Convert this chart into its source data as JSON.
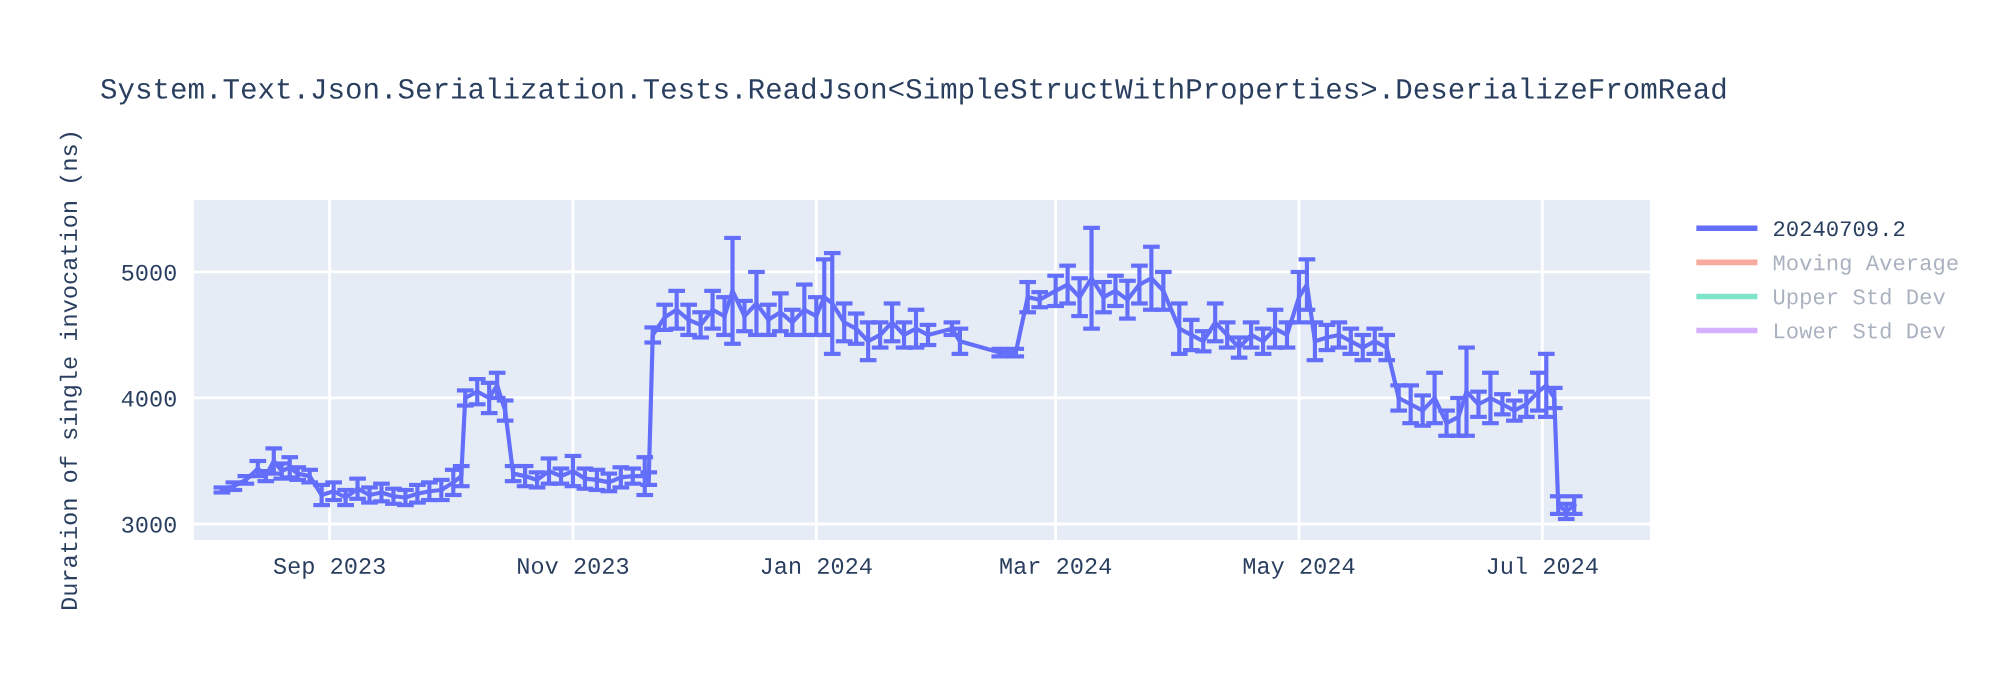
{
  "chart_data": {
    "type": "line",
    "title": "System.Text.Json.Serialization.Tests.ReadJson<SimpleStructWithProperties>.DeserializeFromRead",
    "ylabel": "Duration of single invocation (ns)",
    "xlim": [
      "2023-07-29",
      "2024-07-28"
    ],
    "xticks": [
      {
        "value": "2023-09-01",
        "label": "Sep 2023"
      },
      {
        "value": "2023-11-01",
        "label": "Nov 2023"
      },
      {
        "value": "2024-01-01",
        "label": "Jan 2024"
      },
      {
        "value": "2024-03-01",
        "label": "Mar 2024"
      },
      {
        "value": "2024-05-01",
        "label": "May 2024"
      },
      {
        "value": "2024-07-01",
        "label": "Jul 2024"
      }
    ],
    "ylim": [
      2873,
      5571
    ],
    "yticks": [
      3000,
      4000,
      5000
    ],
    "grid": true,
    "legend": "right",
    "marker": "none",
    "line_style": "solid",
    "x": [
      "2023-08-05",
      "2023-08-08",
      "2023-08-11",
      "2023-08-14",
      "2023-08-16",
      "2023-08-18",
      "2023-08-20",
      "2023-08-22",
      "2023-08-24",
      "2023-08-27",
      "2023-08-30",
      "2023-09-02",
      "2023-09-05",
      "2023-09-08",
      "2023-09-11",
      "2023-09-14",
      "2023-09-17",
      "2023-09-20",
      "2023-09-23",
      "2023-09-26",
      "2023-09-29",
      "2023-10-02",
      "2023-10-04",
      "2023-10-05",
      "2023-10-08",
      "2023-10-11",
      "2023-10-13",
      "2023-10-15",
      "2023-10-17",
      "2023-10-20",
      "2023-10-23",
      "2023-10-26",
      "2023-10-29",
      "2023-11-01",
      "2023-11-04",
      "2023-11-07",
      "2023-11-10",
      "2023-11-13",
      "2023-11-16",
      "2023-11-19",
      "2023-11-20",
      "2023-11-21",
      "2023-11-24",
      "2023-11-27",
      "2023-11-30",
      "2023-12-03",
      "2023-12-06",
      "2023-12-09",
      "2023-12-11",
      "2023-12-14",
      "2023-12-17",
      "2023-12-20",
      "2023-12-23",
      "2023-12-26",
      "2023-12-29",
      "2024-01-01",
      "2024-01-03",
      "2024-01-05",
      "2024-01-08",
      "2024-01-11",
      "2024-01-14",
      "2024-01-17",
      "2024-01-20",
      "2024-01-23",
      "2024-01-26",
      "2024-01-29",
      "2024-02-04",
      "2024-02-06",
      "2024-02-16",
      "2024-02-20",
      "2024-02-23",
      "2024-02-26",
      "2024-03-01",
      "2024-03-04",
      "2024-03-07",
      "2024-03-10",
      "2024-03-13",
      "2024-03-16",
      "2024-03-19",
      "2024-03-22",
      "2024-03-25",
      "2024-03-28",
      "2024-04-01",
      "2024-04-04",
      "2024-04-07",
      "2024-04-10",
      "2024-04-13",
      "2024-04-16",
      "2024-04-19",
      "2024-04-22",
      "2024-04-25",
      "2024-04-28",
      "2024-05-01",
      "2024-05-03",
      "2024-05-05",
      "2024-05-08",
      "2024-05-11",
      "2024-05-14",
      "2024-05-17",
      "2024-05-20",
      "2024-05-23",
      "2024-05-26",
      "2024-05-29",
      "2024-06-01",
      "2024-06-04",
      "2024-06-07",
      "2024-06-10",
      "2024-06-12",
      "2024-06-15",
      "2024-06-18",
      "2024-06-21",
      "2024-06-24",
      "2024-06-27",
      "2024-06-30",
      "2024-07-02",
      "2024-07-04",
      "2024-07-05",
      "2024-07-07",
      "2024-07-09"
    ],
    "series": [
      {
        "name": "20240709.2",
        "color": "#636efa",
        "values": [
          3270,
          3300,
          3350,
          3440,
          3380,
          3500,
          3420,
          3450,
          3400,
          3380,
          3230,
          3260,
          3210,
          3280,
          3230,
          3250,
          3220,
          3210,
          3240,
          3260,
          3270,
          3330,
          3380,
          4000,
          4050,
          4000,
          4100,
          3900,
          3400,
          3380,
          3350,
          3420,
          3380,
          3420,
          3360,
          3350,
          3330,
          3370,
          3380,
          3380,
          3360,
          4500,
          4640,
          4700,
          4620,
          4580,
          4700,
          4650,
          4850,
          4650,
          4750,
          4620,
          4680,
          4600,
          4700,
          4650,
          4800,
          4750,
          4600,
          4550,
          4450,
          4500,
          4600,
          4500,
          4550,
          4500,
          4550,
          4450,
          4360,
          4360,
          4800,
          4780,
          4850,
          4900,
          4800,
          4950,
          4800,
          4850,
          4780,
          4900,
          4950,
          4850,
          4550,
          4500,
          4450,
          4600,
          4500,
          4400,
          4500,
          4450,
          4550,
          4500,
          4800,
          4900,
          4450,
          4480,
          4500,
          4450,
          4400,
          4450,
          4400,
          4000,
          3950,
          3900,
          4000,
          3800,
          3850,
          4050,
          3950,
          4000,
          3950,
          3900,
          3950,
          4050,
          4100,
          4000,
          3150,
          3100,
          3150
        ],
        "errors": [
          20,
          30,
          30,
          60,
          40,
          100,
          60,
          80,
          50,
          50,
          80,
          70,
          60,
          80,
          60,
          70,
          60,
          60,
          70,
          70,
          80,
          100,
          80,
          60,
          100,
          120,
          100,
          80,
          60,
          80,
          60,
          100,
          60,
          120,
          80,
          80,
          70,
          80,
          60,
          150,
          50,
          60,
          100,
          150,
          120,
          100,
          150,
          150,
          420,
          120,
          250,
          120,
          150,
          100,
          200,
          150,
          300,
          400,
          150,
          120,
          150,
          100,
          150,
          100,
          150,
          80,
          50,
          100,
          30,
          30,
          120,
          60,
          120,
          150,
          150,
          400,
          120,
          120,
          150,
          150,
          250,
          150,
          200,
          120,
          80,
          150,
          100,
          80,
          100,
          100,
          150,
          100,
          200,
          200,
          150,
          100,
          100,
          100,
          100,
          100,
          100,
          100,
          150,
          120,
          200,
          100,
          150,
          350,
          100,
          200,
          80,
          80,
          100,
          150,
          250,
          80,
          70,
          60,
          70
        ]
      },
      {
        "name": "Moving Average",
        "color": "#ef553b",
        "values": [
          null,
          null,
          null,
          null,
          null,
          null,
          null,
          null,
          null,
          null,
          null,
          null,
          null,
          null,
          null,
          null,
          null,
          null,
          null,
          null,
          null,
          null,
          null,
          null,
          null,
          null,
          null,
          null,
          null,
          null,
          null,
          null,
          null,
          null,
          null,
          null,
          null,
          null,
          null,
          null,
          null,
          null,
          null,
          null,
          null,
          null,
          null,
          null,
          null,
          null,
          null,
          null,
          null,
          null,
          null,
          null,
          null,
          null,
          null,
          null,
          null,
          null,
          null,
          null,
          null,
          null,
          null,
          null,
          null,
          null,
          null,
          null,
          null,
          null,
          null,
          null,
          null,
          null,
          null,
          null,
          null,
          null,
          null,
          null,
          null,
          null,
          null,
          null,
          null,
          null,
          null,
          null,
          null,
          null,
          null,
          null,
          null,
          null,
          null,
          null,
          null,
          null,
          null,
          null,
          null,
          null,
          null,
          null,
          null,
          null,
          null,
          null,
          null,
          null,
          null,
          null,
          null,
          null,
          null
        ]
      },
      {
        "name": "Upper Std Dev",
        "color": "#00cc96",
        "values": [
          null,
          null,
          null,
          null,
          null,
          null,
          null,
          null,
          null,
          null,
          null,
          null,
          null,
          null,
          null,
          null,
          null,
          null,
          null,
          null,
          null,
          null,
          null,
          null,
          null,
          null,
          null,
          null,
          null,
          null,
          null,
          null,
          null,
          null,
          null,
          null,
          null,
          null,
          null,
          null,
          null,
          null,
          null,
          null,
          null,
          null,
          null,
          null,
          null,
          null,
          null,
          null,
          null,
          null,
          null,
          null,
          null,
          null,
          null,
          null,
          null,
          null,
          null,
          null,
          null,
          null,
          null,
          null,
          null,
          null,
          null,
          null,
          null,
          null,
          null,
          null,
          null,
          null,
          null,
          null,
          null,
          null,
          null,
          null,
          null,
          null,
          null,
          null,
          null,
          null,
          null,
          null,
          null,
          null,
          null,
          null,
          null,
          null,
          null,
          null,
          null,
          null,
          null,
          null,
          null,
          null,
          null,
          null,
          null,
          null,
          null,
          null,
          null,
          null,
          null,
          null,
          null,
          null,
          null
        ]
      },
      {
        "name": "Lower Std Dev",
        "color": "#ab63fa",
        "values": [
          null,
          null,
          null,
          null,
          null,
          null,
          null,
          null,
          null,
          null,
          null,
          null,
          null,
          null,
          null,
          null,
          null,
          null,
          null,
          null,
          null,
          null,
          null,
          null,
          null,
          null,
          null,
          null,
          null,
          null,
          null,
          null,
          null,
          null,
          null,
          null,
          null,
          null,
          null,
          null,
          null,
          null,
          null,
          null,
          null,
          null,
          null,
          null,
          null,
          null,
          null,
          null,
          null,
          null,
          null,
          null,
          null,
          null,
          null,
          null,
          null,
          null,
          null,
          null,
          null,
          null,
          null,
          null,
          null,
          null,
          null,
          null,
          null,
          null,
          null,
          null,
          null,
          null,
          null,
          null,
          null,
          null,
          null,
          null,
          null,
          null,
          null,
          null,
          null,
          null,
          null,
          null,
          null,
          null,
          null,
          null,
          null,
          null,
          null,
          null,
          null,
          null,
          null,
          null,
          null,
          null,
          null,
          null,
          null,
          null,
          null,
          null,
          null,
          null,
          null,
          null,
          null,
          null,
          null
        ]
      }
    ]
  }
}
